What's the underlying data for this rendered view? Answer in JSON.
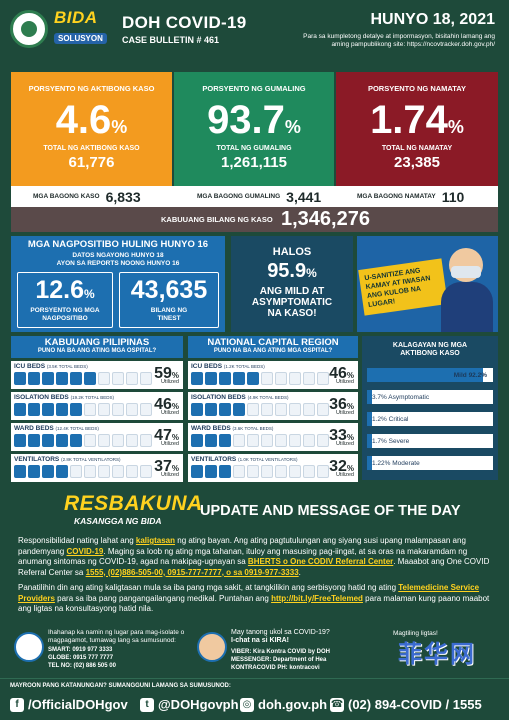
{
  "header": {
    "title": "DOH COVID-19",
    "bulletin": "CASE BULLETIN # 461",
    "date": "HUNYO 18, 2021",
    "note": "Para sa kumpletong detalye at impormasyon, bisitahin lamang ang aming pampublikong site: https://ncovtracker.doh.gov.ph/",
    "bida": "BIDA",
    "bida_sub": "SOLUSYON"
  },
  "stats": {
    "active": {
      "label": "PORSYENTO NG AKTIBONG KASO",
      "value": "4.6",
      "unit": "%",
      "sub": "TOTAL NG AKTIBONG KASO",
      "num": "61,776"
    },
    "recovered": {
      "label": "PORSYENTO NG GUMALING",
      "value": "93.7",
      "unit": "%",
      "sub": "TOTAL NG GUMALING",
      "num": "1,261,115"
    },
    "died": {
      "label": "PORSYENTO NG NAMATAY",
      "value": "1.74",
      "unit": "%",
      "sub": "TOTAL NG NAMATAY",
      "num": "23,385"
    }
  },
  "new": {
    "cases_label": "MGA BAGONG KASO",
    "cases": "6,833",
    "recovered_label": "MGA BAGONG GUMALING",
    "recovered": "3,441",
    "deaths_label": "MGA BAGONG NAMATAY",
    "deaths": "110"
  },
  "total": {
    "label": "KABUUANG BILANG NG KASO",
    "value": "1,346,276"
  },
  "positivity": {
    "title": "MGA NAGPOSITIBO HULING HUNYO 16",
    "sub1": "DATOS NGAYONG HUNYO 18",
    "sub2": "AYON SA REPORTS NOONG HUNYO 16",
    "rate": "12.6",
    "rate_unit": "%",
    "rate_cap1": "PORSYENTO NG MGA",
    "rate_cap2": "NAGPOSITIBO",
    "tested": "43,635",
    "tested_cap1": "BILANG NG",
    "tested_cap2": "TINEST"
  },
  "mild": {
    "a": "HALOS",
    "value": "95.9",
    "unit": "%",
    "c1": "ANG MILD AT",
    "c2": "ASYMPTOMATIC",
    "c3": "NA KASO!"
  },
  "promo": {
    "text": "U-SANITIZE ANG KAMAY AT IWASAN ANG KULOB NA LUGAR!"
  },
  "hospitals": {
    "ph": {
      "title": "KABUUANG PILIPINAS",
      "sub": "PUNO NA BA ANG ATING MGA OSPITAL?",
      "rows": [
        {
          "name": "ICU BEDS",
          "cap": "(3.5K TOTAL BEDS)",
          "pct": "59",
          "util": "Utilized"
        },
        {
          "name": "ISOLATION BEDS",
          "cap": "(19.2K TOTAL BEDS)",
          "pct": "46",
          "util": "Utilized"
        },
        {
          "name": "WARD BEDS",
          "cap": "(12.4K TOTAL BEDS)",
          "pct": "47",
          "util": "Utilized"
        },
        {
          "name": "VENTILATORS",
          "cap": "(2.8K TOTAL VENTILATORS)",
          "pct": "37",
          "util": "Utilized"
        }
      ]
    },
    "ncr": {
      "title": "NATIONAL CAPITAL REGION",
      "sub": "PUNO NA BA ANG ATING MGA OSPITAL?",
      "rows": [
        {
          "name": "ICU BEDS",
          "cap": "(1.2K TOTAL BEDS)",
          "pct": "46",
          "util": "Utilized"
        },
        {
          "name": "ISOLATION BEDS",
          "cap": "(4.9K TOTAL BEDS)",
          "pct": "36",
          "util": "Utilized"
        },
        {
          "name": "WARD BEDS",
          "cap": "(3.6K TOTAL BEDS)",
          "pct": "33",
          "util": "Utilized"
        },
        {
          "name": "VENTILATORS",
          "cap": "(1.0K TOTAL VENTILATORS)",
          "pct": "32",
          "util": "Utilized"
        }
      ]
    }
  },
  "severity": {
    "title1": "KALAGAYAN NG MGA",
    "title2": "AKTIBONG KASO",
    "items": [
      {
        "label": "Mild 92.2%",
        "fraction": 0.922
      },
      {
        "label": "3.7% Asymptomatic",
        "fraction": 0.037
      },
      {
        "label": "1.2% Critical",
        "fraction": 0.012
      },
      {
        "label": "1.7% Severe",
        "fraction": 0.017
      },
      {
        "label": "1.22% Moderate",
        "fraction": 0.0122
      }
    ]
  },
  "message": {
    "resbakuna": "RESBAKUNA",
    "kasangga": "KASANGGA NG BIDA",
    "title": "UPDATE AND MESSAGE OF THE DAY",
    "p1a": "Responsibilidad nating lahat ang ",
    "p1b": "kaligtasan",
    "p1c": " ng ating bayan. Ang ating pagtutulungan ang siyang susi upang malampasan ang pandemyang ",
    "p1d": "COVID-19",
    "p1e": ". Maging sa loob ng ating mga tahanan, ituloy ang masusing pag-iingat, at sa oras na makaramdam ng anumang sintomas ng COVID-19, agad na makipag-ugnayan sa ",
    "p1f": "BHERTS o One CODIV Referral Center",
    "p1g": ". Maaabot ang One COVID Referral Center sa ",
    "p1h": "1555, (02)886-505-00, 0915-777-7777, o sa 0919-977-3333",
    "p1i": ".",
    "p2a": "Panatilihin din ang ating kaligtasan mula sa iba pang mga sakit, at tangkilikin ang serbisyong hatid ng ating ",
    "p2b": "Telemedicine Service Providers",
    "p2c": " para sa iba pang pangangailangang medikal. Puntahan ang ",
    "p2d": "http://bit.ly/FreeTelemed",
    "p2e": " para malaman kung paano maabot ang ligtas na konsultasyong hatid nila."
  },
  "contacts": {
    "c1_text": "Ihahanap ka namin ng lugar para mag-isolate o magpagamot, tumawag lang sa sumusunod:",
    "c1_smart": "SMART: 0919 977 3333",
    "c1_globe": "GLOBE: 0915 777 7777",
    "c1_tel": "TEL NO: (02) 886 505 00",
    "c2_text1": "May tanong ukol sa COVID-19?",
    "c2_text2": "I-chat na si KIRA!",
    "c2_viber": "VIBER: Kira Kontra COVID by DOH",
    "c2_messenger": "MESSENGER: Department of Hea",
    "c2_kontra": "KONTRACOVID PH: kontracovi",
    "c3_text": "Magtiling ligtas!"
  },
  "footer": {
    "top": "MAYROON PANG KATANUNGAN? SUMANGGUNI LAMANG SA SUMUSUNOD:",
    "fb": "/OfficialDOHgov",
    "tw": "@DOHgovph",
    "web": "doh.gov.ph",
    "phone": "(02) 894-COVID / 1555"
  },
  "watermark": "菲华网",
  "colors": {
    "orange": "#f39b1f",
    "green": "#1f8a5d",
    "red": "#8b1a26",
    "blue": "#1d6fb0",
    "bg": "#1e4a3a"
  }
}
